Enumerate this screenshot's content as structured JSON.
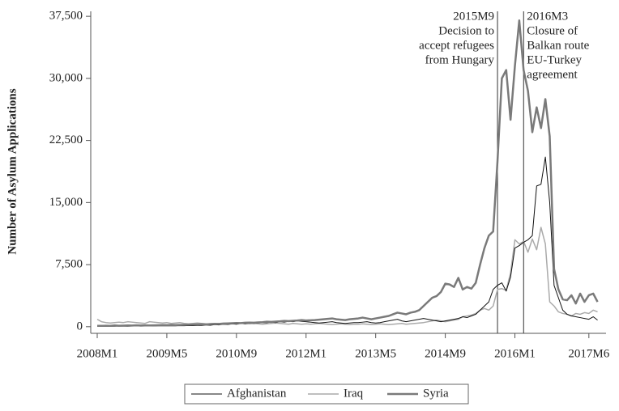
{
  "chart_data": {
    "type": "line",
    "ylabel": "Number of Asylum Applications",
    "categories": [
      "2008M1",
      "2008M2",
      "2008M3",
      "2008M4",
      "2008M5",
      "2008M6",
      "2008M7",
      "2008M8",
      "2008M9",
      "2008M10",
      "2008M11",
      "2008M12",
      "2009M1",
      "2009M2",
      "2009M3",
      "2009M4",
      "2009M5",
      "2009M6",
      "2009M7",
      "2009M8",
      "2009M9",
      "2009M10",
      "2009M11",
      "2009M12",
      "2010M1",
      "2010M2",
      "2010M3",
      "2010M4",
      "2010M5",
      "2010M6",
      "2010M7",
      "2010M8",
      "2010M9",
      "2010M10",
      "2010M11",
      "2010M12",
      "2011M1",
      "2011M2",
      "2011M3",
      "2011M4",
      "2011M5",
      "2011M6",
      "2011M7",
      "2011M8",
      "2011M9",
      "2011M10",
      "2011M11",
      "2011M12",
      "2012M1",
      "2012M2",
      "2012M3",
      "2012M4",
      "2012M5",
      "2012M6",
      "2012M7",
      "2012M8",
      "2012M9",
      "2012M10",
      "2012M11",
      "2012M12",
      "2013M1",
      "2013M2",
      "2013M3",
      "2013M4",
      "2013M5",
      "2013M6",
      "2013M7",
      "2013M8",
      "2013M9",
      "2013M10",
      "2013M11",
      "2013M12",
      "2014M1",
      "2014M2",
      "2014M3",
      "2014M4",
      "2014M5",
      "2014M6",
      "2014M7",
      "2014M8",
      "2014M9",
      "2014M10",
      "2014M11",
      "2014M12",
      "2015M1",
      "2015M2",
      "2015M3",
      "2015M4",
      "2015M5",
      "2015M6",
      "2015M7",
      "2015M8",
      "2015M9",
      "2015M10",
      "2015M11",
      "2015M12",
      "2016M1",
      "2016M2",
      "2016M3",
      "2016M4",
      "2016M5",
      "2016M6",
      "2016M7",
      "2016M8",
      "2016M9",
      "2016M10",
      "2016M11",
      "2016M12",
      "2017M1",
      "2017M2",
      "2017M3",
      "2017M4",
      "2017M5",
      "2017M6",
      "2017M7",
      "2017M8"
    ],
    "series": [
      {
        "name": "Afghanistan",
        "color": "#111111",
        "width": 1,
        "values": [
          50,
          60,
          50,
          70,
          60,
          80,
          70,
          60,
          80,
          90,
          70,
          80,
          80,
          90,
          100,
          110,
          100,
          120,
          110,
          130,
          120,
          140,
          130,
          150,
          150,
          200,
          180,
          250,
          220,
          300,
          280,
          350,
          300,
          400,
          350,
          450,
          400,
          450,
          500,
          480,
          550,
          500,
          600,
          550,
          650,
          600,
          700,
          650,
          600,
          550,
          500,
          450,
          500,
          550,
          600,
          500,
          450,
          400,
          450,
          500,
          500,
          550,
          600,
          500,
          450,
          500,
          600,
          700,
          800,
          900,
          700,
          600,
          700,
          800,
          900,
          1000,
          900,
          800,
          700,
          600,
          700,
          800,
          900,
          1000,
          1200,
          1100,
          1300,
          1500,
          2000,
          2500,
          3000,
          4500,
          5000,
          5300,
          4300,
          6000,
          9500,
          9800,
          10200,
          10500,
          11000,
          17000,
          17200,
          20500,
          15000,
          5000,
          3500,
          2000,
          1500,
          1300,
          1200,
          1100,
          1000,
          900,
          1200,
          800
        ]
      },
      {
        "name": "Iraq",
        "color": "#aaaaaa",
        "width": 1.5,
        "values": [
          900,
          600,
          500,
          450,
          500,
          550,
          500,
          600,
          550,
          500,
          450,
          400,
          600,
          550,
          500,
          450,
          500,
          400,
          450,
          500,
          400,
          350,
          400,
          450,
          400,
          350,
          300,
          350,
          400,
          350,
          300,
          350,
          400,
          450,
          400,
          350,
          400,
          350,
          300,
          350,
          400,
          450,
          400,
          350,
          300,
          400,
          350,
          300,
          350,
          300,
          350,
          400,
          350,
          300,
          250,
          300,
          350,
          300,
          250,
          300,
          300,
          350,
          300,
          250,
          300,
          350,
          300,
          250,
          300,
          350,
          400,
          300,
          350,
          400,
          450,
          500,
          600,
          700,
          800,
          700,
          600,
          700,
          800,
          900,
          1200,
          1300,
          1400,
          1600,
          2000,
          2200,
          2000,
          2500,
          4500,
          4600,
          4400,
          6500,
          10500,
          10000,
          10300,
          9000,
          10600,
          9300,
          12000,
          10000,
          3000,
          2500,
          1800,
          1600,
          1500,
          1300,
          1600,
          1500,
          1700,
          1600,
          2000,
          1800
        ]
      },
      {
        "name": "Syria",
        "color": "#7a7a7a",
        "width": 2.5,
        "values": [
          100,
          100,
          120,
          100,
          150,
          120,
          130,
          150,
          140,
          160,
          150,
          170,
          150,
          170,
          180,
          200,
          190,
          210,
          200,
          220,
          230,
          250,
          260,
          280,
          300,
          280,
          320,
          350,
          340,
          380,
          400,
          420,
          450,
          430,
          480,
          500,
          480,
          520,
          550,
          600,
          580,
          620,
          650,
          700,
          680,
          720,
          750,
          800,
          750,
          780,
          800,
          850,
          900,
          950,
          1000,
          900,
          850,
          800,
          900,
          950,
          1000,
          1100,
          1000,
          900,
          1000,
          1100,
          1200,
          1300,
          1500,
          1700,
          1600,
          1500,
          1700,
          1800,
          2000,
          2500,
          3000,
          3500,
          3700,
          4200,
          5200,
          5100,
          4800,
          5900,
          4500,
          4800,
          4600,
          5300,
          7500,
          9500,
          11000,
          11500,
          20000,
          30000,
          31000,
          25000,
          31500,
          37000,
          31000,
          28500,
          23500,
          26500,
          24000,
          27500,
          23000,
          7000,
          4500,
          3300,
          3200,
          3800,
          2800,
          4000,
          3000,
          3800,
          4000,
          3000
        ]
      }
    ],
    "xticks": [
      "2008M1",
      "2009M5",
      "2010M9",
      "2012M1",
      "2013M5",
      "2014M9",
      "2016M1",
      "2017M6"
    ],
    "ylim": [
      -800,
      38100
    ],
    "yticks": [
      0,
      {
        "value": 7500,
        "label": "7,500"
      },
      {
        "value": 15000,
        "label": "15,000"
      },
      {
        "value": 22500,
        "label": "22,500"
      },
      {
        "value": 30000,
        "label": "30,000"
      },
      {
        "value": 37500,
        "label": "37,500"
      }
    ],
    "annotations": [
      {
        "x": "2015M9",
        "lines": [
          "2015M9",
          "Decision to",
          "accept refugees",
          "from Hungary"
        ],
        "side": "left"
      },
      {
        "x": "2016M3",
        "lines": [
          "2016M3",
          "Closure of",
          "Balkan route",
          "EU-Turkey",
          "agreement"
        ],
        "side": "right"
      }
    ],
    "legend": "bottom"
  }
}
